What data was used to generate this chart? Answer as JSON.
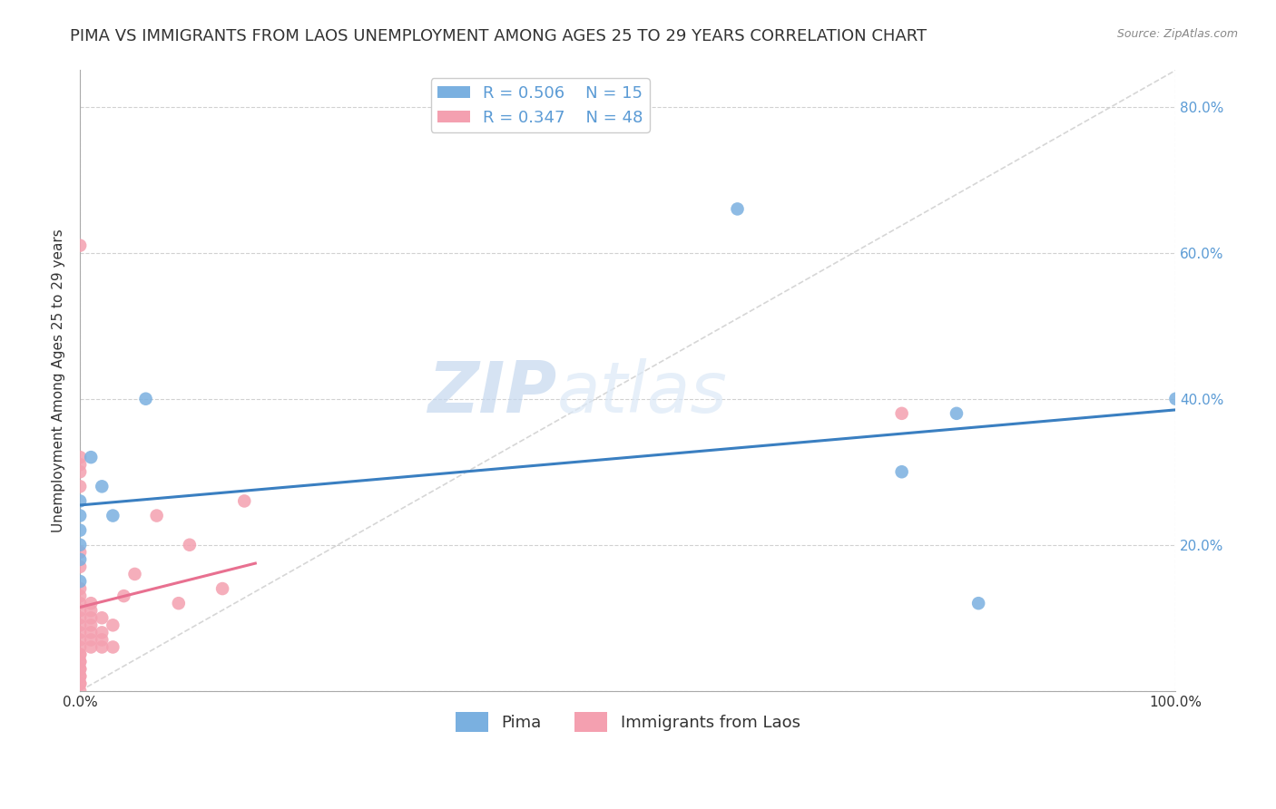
{
  "title": "PIMA VS IMMIGRANTS FROM LAOS UNEMPLOYMENT AMONG AGES 25 TO 29 YEARS CORRELATION CHART",
  "source": "Source: ZipAtlas.com",
  "ylabel": "Unemployment Among Ages 25 to 29 years",
  "xlim": [
    0.0,
    1.0
  ],
  "ylim": [
    0.0,
    0.85
  ],
  "xtick_positions": [
    0.0,
    1.0
  ],
  "xtick_labels": [
    "0.0%",
    "100.0%"
  ],
  "ytick_positions": [
    0.0,
    0.2,
    0.4,
    0.6,
    0.8
  ],
  "ytick_labels": [
    "",
    "20.0%",
    "40.0%",
    "60.0%",
    "80.0%"
  ],
  "background_color": "#ffffff",
  "pima_color": "#7ab0e0",
  "laos_color": "#f4a0b0",
  "pima_line_color": "#3a7fc1",
  "laos_line_color": "#e87090",
  "legend_pima_r": "R = 0.506",
  "legend_pima_n": "N = 15",
  "legend_laos_r": "R = 0.347",
  "legend_laos_n": "N = 48",
  "pima_x": [
    0.0,
    0.0,
    0.0,
    0.0,
    0.0,
    0.0,
    0.01,
    0.02,
    0.03,
    0.06,
    0.6,
    0.75,
    0.8,
    0.82,
    1.0
  ],
  "pima_y": [
    0.15,
    0.18,
    0.2,
    0.22,
    0.24,
    0.26,
    0.32,
    0.28,
    0.24,
    0.4,
    0.66,
    0.3,
    0.38,
    0.12,
    0.4
  ],
  "laos_x": [
    0.0,
    0.0,
    0.0,
    0.0,
    0.0,
    0.0,
    0.0,
    0.0,
    0.0,
    0.0,
    0.0,
    0.0,
    0.0,
    0.0,
    0.0,
    0.0,
    0.0,
    0.0,
    0.0,
    0.0,
    0.01,
    0.01,
    0.01,
    0.01,
    0.01,
    0.01,
    0.01,
    0.02,
    0.02,
    0.02,
    0.02,
    0.03,
    0.03,
    0.04,
    0.05,
    0.07,
    0.09,
    0.1,
    0.13,
    0.15,
    0.0,
    0.0,
    0.0,
    0.0,
    0.0,
    0.0,
    0.0,
    0.75
  ],
  "laos_y": [
    0.0,
    0.01,
    0.02,
    0.03,
    0.04,
    0.05,
    0.06,
    0.07,
    0.08,
    0.09,
    0.1,
    0.11,
    0.12,
    0.13,
    0.14,
    0.01,
    0.02,
    0.03,
    0.04,
    0.05,
    0.06,
    0.07,
    0.08,
    0.09,
    0.1,
    0.11,
    0.12,
    0.06,
    0.07,
    0.08,
    0.1,
    0.06,
    0.09,
    0.13,
    0.16,
    0.24,
    0.12,
    0.2,
    0.14,
    0.26,
    0.17,
    0.19,
    0.28,
    0.31,
    0.32,
    0.61,
    0.3,
    0.38
  ],
  "grid_color": "#cccccc",
  "diag_line_color": "#cccccc",
  "title_fontsize": 13,
  "axis_fontsize": 11,
  "tick_fontsize": 11,
  "legend_fontsize": 13
}
